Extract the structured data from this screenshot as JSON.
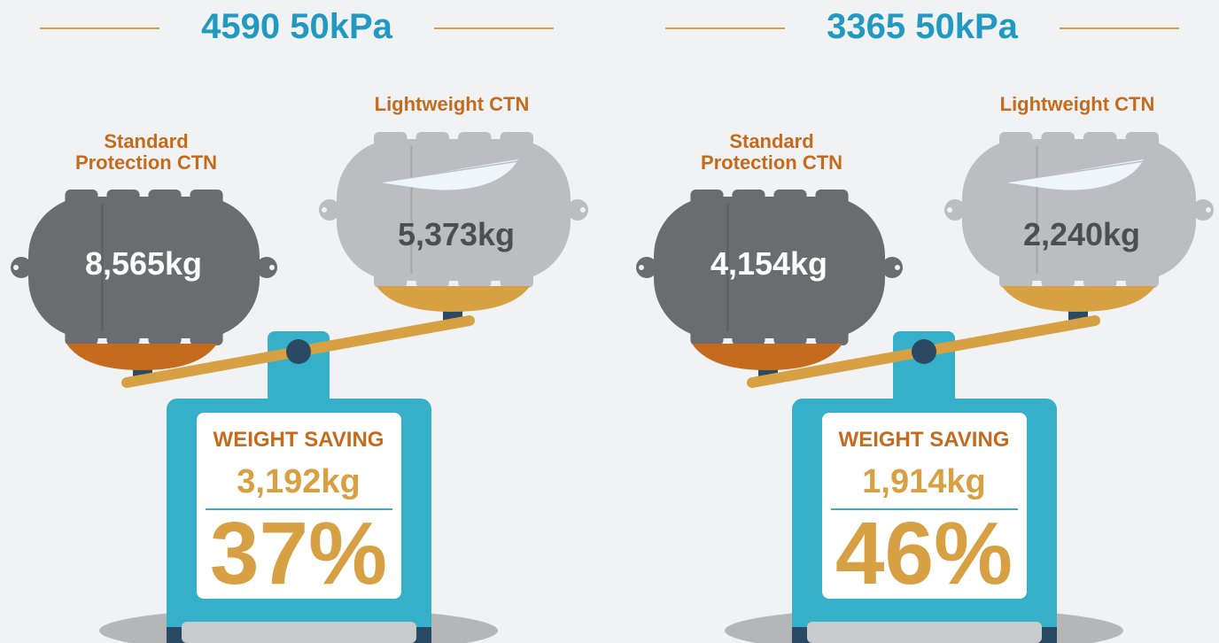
{
  "panels": [
    {
      "title": "4590 50kPa",
      "standard_label": "Standard Protection CTN",
      "standard_weight": "8,565kg",
      "light_label": "Lightweight CTN",
      "light_weight": "5,373kg",
      "saving_label": "WEIGHT SAVING",
      "saving_weight": "3,192kg",
      "saving_percent": "37%"
    },
    {
      "title": "3365 50kPa",
      "standard_label": "Standard Protection CTN",
      "standard_weight": "4,154kg",
      "light_label": "Lightweight CTN",
      "light_weight": "2,240kg",
      "saving_label": "WEIGHT SAVING",
      "saving_weight": "1,914kg",
      "saving_percent": "46%"
    }
  ]
}
